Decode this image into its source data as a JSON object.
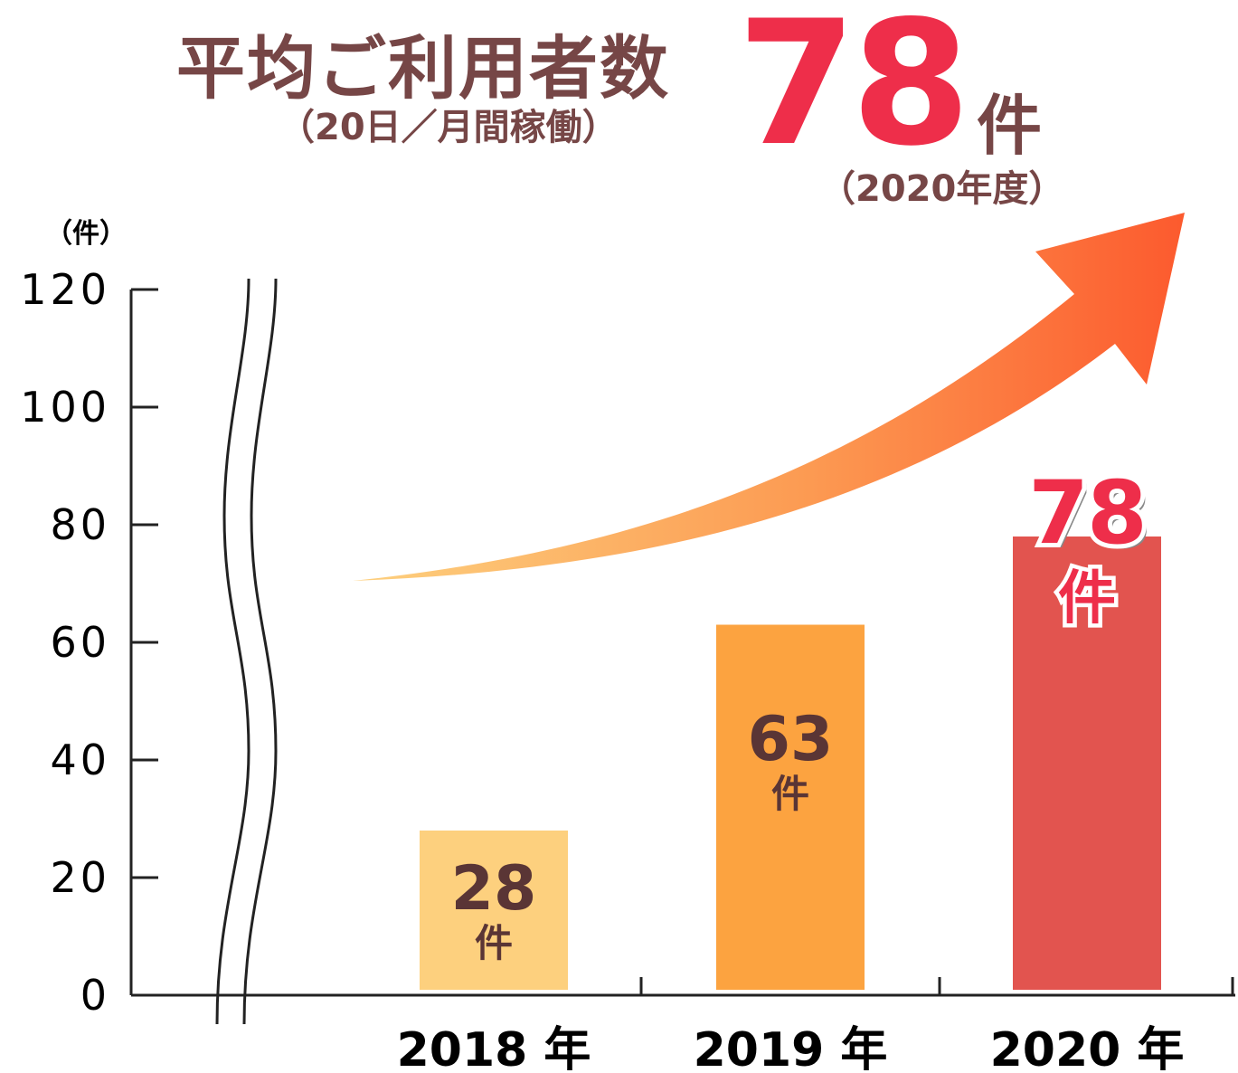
{
  "header": {
    "title": "平均ご利用者数",
    "subtitle": "（20日／月間稼働）",
    "highlight_value": "78",
    "highlight_unit": "件",
    "highlight_period": "（2020年度）"
  },
  "axis": {
    "unit_label": "（件）"
  },
  "colors": {
    "headline": "#764646",
    "accent": "#ee2e4a",
    "bar_2018": "#fdd07e",
    "bar_2019": "#fca340",
    "bar_2020": "#e2544f"
  },
  "chart_data": {
    "type": "bar",
    "categories": [
      "2018 年",
      "2019 年",
      "2020 年"
    ],
    "values": [
      28,
      63,
      78
    ],
    "value_labels": [
      "28",
      "63",
      "78"
    ],
    "value_unit": "件",
    "ylabel": "（件）",
    "ylim": [
      0,
      120
    ],
    "yticks": [
      0,
      20,
      40,
      60,
      80,
      100,
      120
    ],
    "axis_break": true,
    "trend_arrow": true,
    "grid": false
  }
}
